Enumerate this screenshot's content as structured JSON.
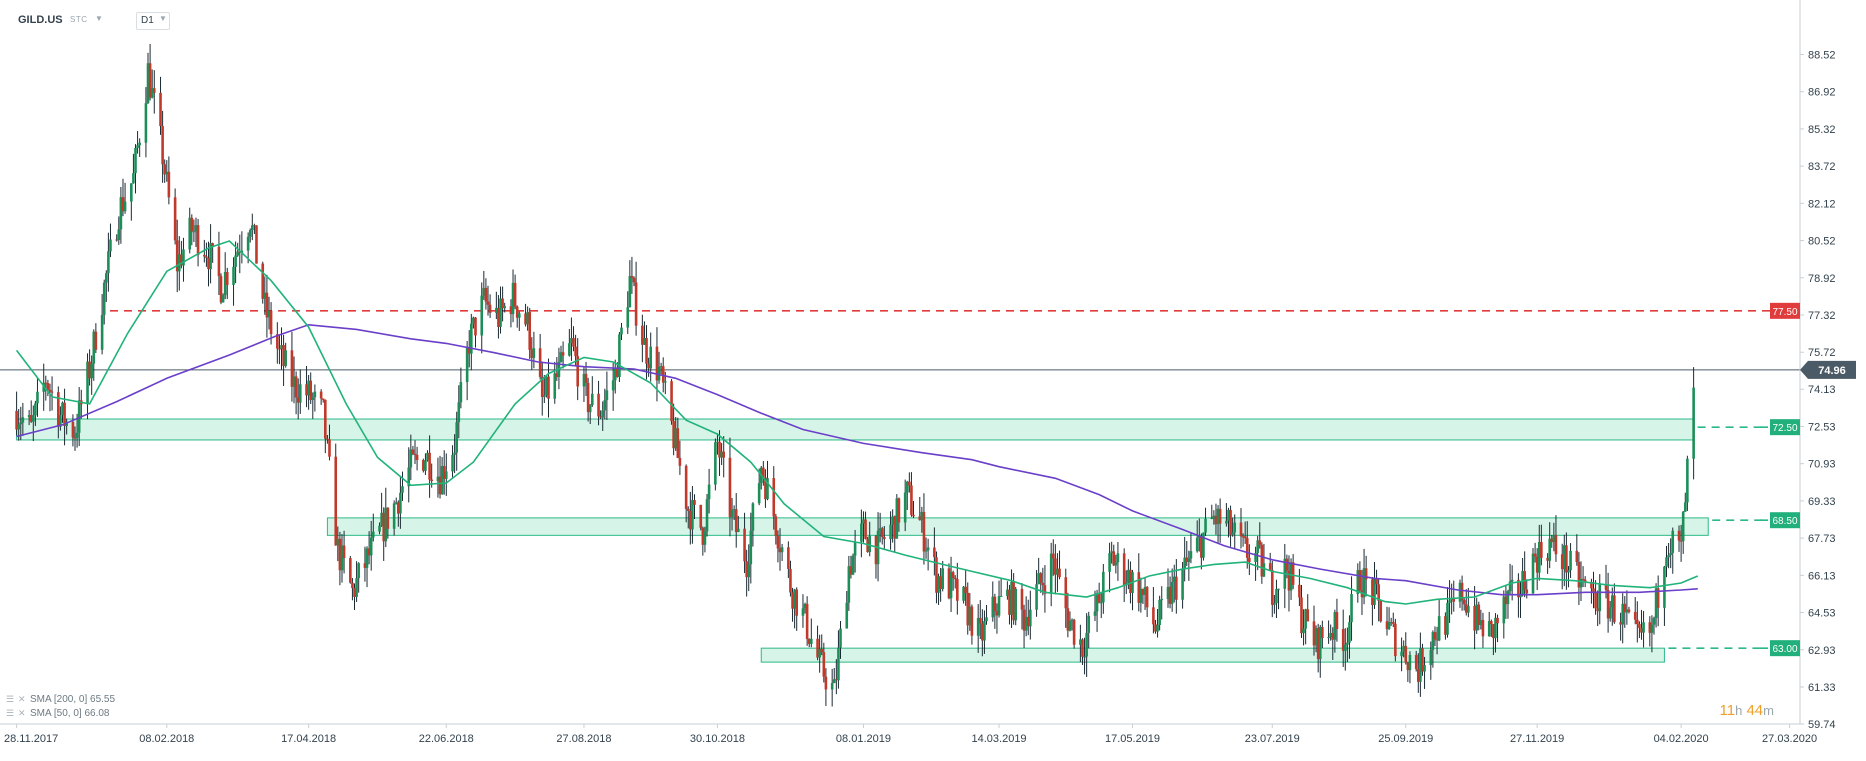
{
  "header": {
    "symbol": "GILD.US",
    "price_type": "STC",
    "timeframe": "D1"
  },
  "legend": {
    "sma200": "SMA [200, 0] 65.55",
    "sma50": "SMA [50, 0] 66.08"
  },
  "timer": {
    "hours": "11",
    "h": "h",
    "minutes": "44",
    "m": "m"
  },
  "colors": {
    "up": "#1e8e59",
    "down": "#c0392b",
    "sma50": "#20b37a",
    "sma200": "#6a3fc9",
    "resistance": "#e03c3c",
    "support": "#2bb986",
    "zone_fill": "#c9f0e0",
    "current_price_tag": "#4a5a66"
  },
  "chart_data": {
    "type": "candlestick",
    "instrument": "GILD.US",
    "timeframe": "D1",
    "ylim": [
      59.74,
      89.4
    ],
    "y_ticks": [
      "88.52",
      "86.92",
      "85.32",
      "83.72",
      "82.12",
      "80.52",
      "78.92",
      "77.32",
      "75.72",
      "74.13",
      "72.53",
      "70.93",
      "69.33",
      "67.73",
      "66.13",
      "64.53",
      "62.93",
      "61.33",
      "59.74"
    ],
    "x_ticks": [
      {
        "label": "28.11.2017",
        "date": "2017-11-28"
      },
      {
        "label": "08.02.2018",
        "date": "2018-02-08"
      },
      {
        "label": "17.04.2018",
        "date": "2018-04-17"
      },
      {
        "label": "22.06.2018",
        "date": "2018-06-22"
      },
      {
        "label": "27.08.2018",
        "date": "2018-08-27"
      },
      {
        "label": "30.10.2018",
        "date": "2018-10-30"
      },
      {
        "label": "08.01.2019",
        "date": "2019-01-08"
      },
      {
        "label": "14.03.2019",
        "date": "2019-03-14"
      },
      {
        "label": "17.05.2019",
        "date": "2019-05-17"
      },
      {
        "label": "23.07.2019",
        "date": "2019-07-23"
      },
      {
        "label": "25.09.2019",
        "date": "2019-09-25"
      },
      {
        "label": "27.11.2019",
        "date": "2019-11-27"
      },
      {
        "label": "04.02.2020",
        "date": "2020-02-04"
      },
      {
        "label": "27.03.2020",
        "date": "2020-03-27"
      }
    ],
    "current_price": {
      "value": 74.96,
      "label": "74.96"
    },
    "levels": [
      {
        "value": 77.5,
        "label": "77.50",
        "style": "dashed",
        "color": "#e03c3c"
      },
      {
        "value": 72.5,
        "label": "72.50",
        "style": "dashed",
        "color": "#2bb986"
      },
      {
        "value": 68.5,
        "label": "68.50",
        "style": "dashed",
        "color": "#2bb986"
      },
      {
        "value": 63.0,
        "label": "63.00",
        "style": "dashed",
        "color": "#2bb986"
      }
    ],
    "zones": [
      {
        "from_date": "2017-11-28",
        "to_date": "2020-02-10",
        "low": 71.95,
        "high": 72.85
      },
      {
        "from_date": "2018-04-26",
        "to_date": "2020-02-17",
        "low": 67.85,
        "high": 68.6
      },
      {
        "from_date": "2018-11-20",
        "to_date": "2020-01-27",
        "low": 62.4,
        "high": 63.0
      }
    ],
    "sma50": [
      [
        "2017-11-28",
        75.8
      ],
      [
        "2017-12-15",
        73.8
      ],
      [
        "2018-01-02",
        73.5
      ],
      [
        "2018-01-20",
        76.5
      ],
      [
        "2018-02-08",
        79.2
      ],
      [
        "2018-02-28",
        80.2
      ],
      [
        "2018-03-10",
        80.5
      ],
      [
        "2018-03-30",
        78.8
      ],
      [
        "2018-04-17",
        76.8
      ],
      [
        "2018-05-05",
        73.5
      ],
      [
        "2018-05-20",
        71.2
      ],
      [
        "2018-06-05",
        70.0
      ],
      [
        "2018-06-22",
        70.1
      ],
      [
        "2018-07-05",
        71.0
      ],
      [
        "2018-07-25",
        73.5
      ],
      [
        "2018-08-10",
        74.8
      ],
      [
        "2018-08-27",
        75.5
      ],
      [
        "2018-09-10",
        75.3
      ],
      [
        "2018-09-28",
        74.4
      ],
      [
        "2018-10-15",
        72.8
      ],
      [
        "2018-10-30",
        72.2
      ],
      [
        "2018-11-15",
        71.0
      ],
      [
        "2018-12-01",
        69.2
      ],
      [
        "2018-12-20",
        67.8
      ],
      [
        "2019-01-08",
        67.5
      ],
      [
        "2019-01-28",
        67.0
      ],
      [
        "2019-02-15",
        66.6
      ],
      [
        "2019-03-01",
        66.3
      ],
      [
        "2019-03-20",
        65.9
      ],
      [
        "2019-04-05",
        65.4
      ],
      [
        "2019-04-25",
        65.2
      ],
      [
        "2019-05-10",
        65.6
      ],
      [
        "2019-05-25",
        66.1
      ],
      [
        "2019-06-10",
        66.4
      ],
      [
        "2019-06-25",
        66.6
      ],
      [
        "2019-07-10",
        66.7
      ],
      [
        "2019-07-23",
        66.3
      ],
      [
        "2019-08-10",
        66.0
      ],
      [
        "2019-08-28",
        65.6
      ],
      [
        "2019-09-15",
        65.0
      ],
      [
        "2019-09-25",
        64.9
      ],
      [
        "2019-10-10",
        65.1
      ],
      [
        "2019-10-28",
        65.2
      ],
      [
        "2019-11-15",
        65.8
      ],
      [
        "2019-11-27",
        66.0
      ],
      [
        "2019-12-15",
        65.9
      ],
      [
        "2020-01-01",
        65.7
      ],
      [
        "2020-01-20",
        65.6
      ],
      [
        "2020-02-04",
        65.8
      ],
      [
        "2020-02-12",
        66.1
      ]
    ],
    "sma200": [
      [
        "2017-11-28",
        72.1
      ],
      [
        "2017-12-20",
        72.6
      ],
      [
        "2018-01-15",
        73.6
      ],
      [
        "2018-02-08",
        74.6
      ],
      [
        "2018-03-10",
        75.6
      ],
      [
        "2018-04-01",
        76.4
      ],
      [
        "2018-04-17",
        76.9
      ],
      [
        "2018-05-10",
        76.7
      ],
      [
        "2018-06-05",
        76.3
      ],
      [
        "2018-06-22",
        76.1
      ],
      [
        "2018-07-15",
        75.7
      ],
      [
        "2018-08-05",
        75.3
      ],
      [
        "2018-08-27",
        75.1
      ],
      [
        "2018-09-20",
        75.0
      ],
      [
        "2018-10-10",
        74.6
      ],
      [
        "2018-10-30",
        73.9
      ],
      [
        "2018-11-20",
        73.1
      ],
      [
        "2018-12-10",
        72.4
      ],
      [
        "2019-01-08",
        71.8
      ],
      [
        "2019-02-05",
        71.4
      ],
      [
        "2019-03-01",
        71.1
      ],
      [
        "2019-03-14",
        70.8
      ],
      [
        "2019-04-10",
        70.3
      ],
      [
        "2019-05-01",
        69.6
      ],
      [
        "2019-05-17",
        68.9
      ],
      [
        "2019-06-10",
        68.1
      ],
      [
        "2019-06-30",
        67.4
      ],
      [
        "2019-07-23",
        66.8
      ],
      [
        "2019-08-15",
        66.4
      ],
      [
        "2019-09-10",
        66.0
      ],
      [
        "2019-09-25",
        65.9
      ],
      [
        "2019-10-20",
        65.5
      ],
      [
        "2019-11-10",
        65.3
      ],
      [
        "2019-11-27",
        65.3
      ],
      [
        "2019-12-20",
        65.4
      ],
      [
        "2020-01-15",
        65.4
      ],
      [
        "2020-02-04",
        65.5
      ],
      [
        "2020-02-12",
        65.55
      ]
    ],
    "closes": [
      [
        "2017-11-28",
        73.2
      ],
      [
        "2017-12-05",
        72.4
      ],
      [
        "2017-12-12",
        74.6
      ],
      [
        "2017-12-19",
        73.0
      ],
      [
        "2017-12-26",
        72.3
      ],
      [
        "2018-01-02",
        75.0
      ],
      [
        "2018-01-09",
        78.5
      ],
      [
        "2018-01-16",
        81.8
      ],
      [
        "2018-01-23",
        83.2
      ],
      [
        "2018-01-30",
        87.8
      ],
      [
        "2018-02-06",
        84.2
      ],
      [
        "2018-02-13",
        79.5
      ],
      [
        "2018-02-20",
        81.0
      ],
      [
        "2018-02-27",
        80.2
      ],
      [
        "2018-03-06",
        78.6
      ],
      [
        "2018-03-13",
        80.0
      ],
      [
        "2018-03-20",
        81.5
      ],
      [
        "2018-03-27",
        77.6
      ],
      [
        "2018-04-03",
        75.6
      ],
      [
        "2018-04-10",
        74.3
      ],
      [
        "2018-04-17",
        73.9
      ],
      [
        "2018-04-24",
        73.0
      ],
      [
        "2018-05-01",
        67.2
      ],
      [
        "2018-05-08",
        65.4
      ],
      [
        "2018-05-15",
        66.8
      ],
      [
        "2018-05-22",
        68.1
      ],
      [
        "2018-05-29",
        69.3
      ],
      [
        "2018-06-05",
        70.8
      ],
      [
        "2018-06-12",
        71.3
      ],
      [
        "2018-06-19",
        70.4
      ],
      [
        "2018-06-26",
        71.8
      ],
      [
        "2018-07-03",
        76.2
      ],
      [
        "2018-07-10",
        77.9
      ],
      [
        "2018-07-17",
        77.2
      ],
      [
        "2018-07-24",
        78.1
      ],
      [
        "2018-07-31",
        76.9
      ],
      [
        "2018-08-07",
        73.6
      ],
      [
        "2018-08-14",
        74.6
      ],
      [
        "2018-08-21",
        76.0
      ],
      [
        "2018-08-28",
        73.7
      ],
      [
        "2018-09-04",
        73.2
      ],
      [
        "2018-09-11",
        74.8
      ],
      [
        "2018-09-18",
        78.8
      ],
      [
        "2018-09-25",
        76.0
      ],
      [
        "2018-10-02",
        74.9
      ],
      [
        "2018-10-09",
        72.1
      ],
      [
        "2018-10-16",
        69.0
      ],
      [
        "2018-10-23",
        68.1
      ],
      [
        "2018-10-30",
        71.8
      ],
      [
        "2018-11-06",
        68.6
      ],
      [
        "2018-11-13",
        66.8
      ],
      [
        "2018-11-20",
        70.9
      ],
      [
        "2018-11-27",
        68.4
      ],
      [
        "2018-12-04",
        65.7
      ],
      [
        "2018-12-11",
        64.2
      ],
      [
        "2018-12-18",
        62.3
      ],
      [
        "2018-12-25",
        61.1
      ],
      [
        "2019-01-01",
        66.5
      ],
      [
        "2019-01-08",
        68.0
      ],
      [
        "2019-01-15",
        67.3
      ],
      [
        "2019-01-22",
        68.3
      ],
      [
        "2019-01-29",
        69.6
      ],
      [
        "2019-02-05",
        68.2
      ],
      [
        "2019-02-12",
        66.1
      ],
      [
        "2019-02-19",
        65.6
      ],
      [
        "2019-02-26",
        64.8
      ],
      [
        "2019-03-05",
        63.4
      ],
      [
        "2019-03-12",
        64.8
      ],
      [
        "2019-03-19",
        65.2
      ],
      [
        "2019-03-26",
        64.3
      ],
      [
        "2019-04-02",
        65.6
      ],
      [
        "2019-04-09",
        66.8
      ],
      [
        "2019-04-16",
        64.3
      ],
      [
        "2019-04-23",
        63.1
      ],
      [
        "2019-04-30",
        64.8
      ],
      [
        "2019-05-07",
        66.9
      ],
      [
        "2019-05-14",
        66.2
      ],
      [
        "2019-05-21",
        65.4
      ],
      [
        "2019-05-28",
        63.9
      ],
      [
        "2019-06-04",
        65.3
      ],
      [
        "2019-06-11",
        66.4
      ],
      [
        "2019-06-18",
        67.5
      ],
      [
        "2019-06-25",
        68.6
      ],
      [
        "2019-07-02",
        68.2
      ],
      [
        "2019-07-09",
        67.2
      ],
      [
        "2019-07-16",
        66.9
      ],
      [
        "2019-07-23",
        65.6
      ],
      [
        "2019-07-30",
        66.5
      ],
      [
        "2019-08-06",
        64.4
      ],
      [
        "2019-08-13",
        63.2
      ],
      [
        "2019-08-20",
        63.9
      ],
      [
        "2019-08-27",
        63.5
      ],
      [
        "2019-09-03",
        66.1
      ],
      [
        "2019-09-10",
        65.2
      ],
      [
        "2019-09-17",
        63.8
      ],
      [
        "2019-09-24",
        62.9
      ],
      [
        "2019-10-01",
        62.1
      ],
      [
        "2019-10-08",
        63.6
      ],
      [
        "2019-10-15",
        64.3
      ],
      [
        "2019-10-22",
        65.4
      ],
      [
        "2019-10-29",
        64.1
      ],
      [
        "2019-11-05",
        63.6
      ],
      [
        "2019-11-12",
        64.9
      ],
      [
        "2019-11-19",
        65.6
      ],
      [
        "2019-11-26",
        66.9
      ],
      [
        "2019-12-03",
        67.5
      ],
      [
        "2019-12-10",
        66.8
      ],
      [
        "2019-12-17",
        65.9
      ],
      [
        "2019-12-24",
        65.2
      ],
      [
        "2019-12-31",
        64.9
      ],
      [
        "2020-01-07",
        64.4
      ],
      [
        "2020-01-14",
        63.3
      ],
      [
        "2020-01-21",
        63.7
      ],
      [
        "2020-01-28",
        67.7
      ],
      [
        "2020-02-04",
        67.2
      ],
      [
        "2020-02-11",
        74.96
      ]
    ]
  }
}
